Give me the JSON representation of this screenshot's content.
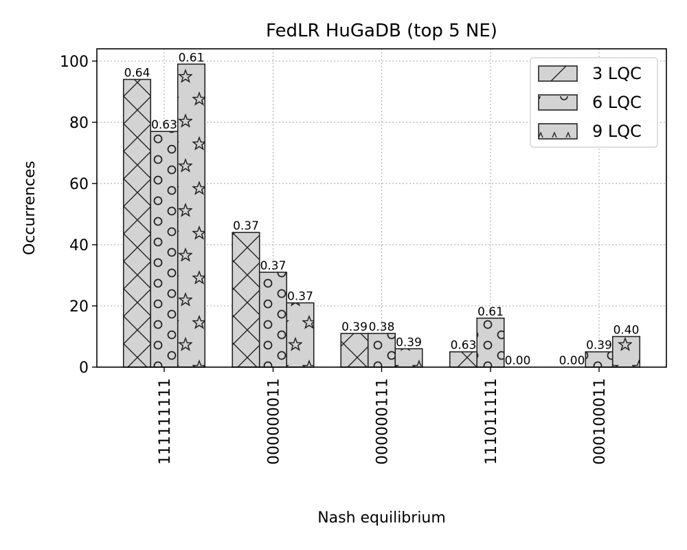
{
  "chart_data": {
    "type": "bar",
    "title": "FedLR HuGaDB (top 5 NE)",
    "xlabel": "Nash equilibrium",
    "ylabel": "Occurrences",
    "ylim": [
      0,
      104
    ],
    "yticks": [
      0,
      20,
      40,
      60,
      80,
      100
    ],
    "grid": true,
    "legend_position": "top-right",
    "bar_fill": "#d3d3d3",
    "categories": [
      "111111111",
      "000000011",
      "000000111",
      "111011111",
      "000100011"
    ],
    "series": [
      {
        "name": "3 LQC",
        "pattern": "x-hatch",
        "values": [
          94,
          44,
          11,
          5,
          0
        ],
        "labels": [
          "0.64",
          "0.37",
          "0.39",
          "0.63",
          "0.00"
        ]
      },
      {
        "name": "6 LQC",
        "pattern": "circles",
        "values": [
          77,
          31,
          11,
          16,
          5
        ],
        "labels": [
          "0.63",
          "0.37",
          "0.38",
          "0.61",
          "0.39"
        ]
      },
      {
        "name": "9 LQC",
        "pattern": "stars",
        "values": [
          99,
          21,
          6,
          0,
          10
        ],
        "labels": [
          "0.61",
          "0.37",
          "0.39",
          "0.00",
          "0.40"
        ]
      }
    ]
  }
}
